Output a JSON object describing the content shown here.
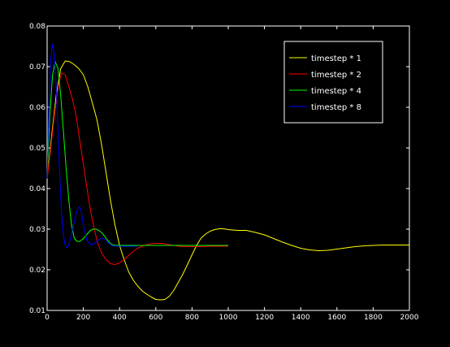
{
  "chart_data": {
    "type": "line",
    "title": "",
    "xlabel": "",
    "ylabel": "",
    "xlim": [
      0,
      2000
    ],
    "ylim": [
      0.01,
      0.08
    ],
    "x_ticks": [
      0,
      200,
      400,
      600,
      800,
      1000,
      1200,
      1400,
      1600,
      1800,
      2000
    ],
    "y_ticks": [
      0.01,
      0.02,
      0.03,
      0.04,
      0.05,
      0.06,
      0.07,
      0.08
    ],
    "grid": false,
    "legend_position": "top-right",
    "background": "#000000",
    "axis_color": "#ffffff",
    "series": [
      {
        "name": "timestep * 1",
        "color": "#ffff00",
        "x": [
          0,
          25,
          50,
          75,
          100,
          125,
          150,
          175,
          200,
          225,
          250,
          275,
          300,
          325,
          350,
          375,
          400,
          425,
          450,
          475,
          500,
          525,
          550,
          575,
          600,
          625,
          650,
          675,
          700,
          725,
          750,
          775,
          800,
          825,
          850,
          875,
          900,
          925,
          950,
          975,
          1000,
          1050,
          1100,
          1150,
          1200,
          1250,
          1300,
          1350,
          1400,
          1450,
          1500,
          1550,
          1600,
          1650,
          1700,
          1750,
          1800,
          1850,
          1900,
          1950,
          2000
        ],
        "y": [
          0.0425,
          0.053,
          0.063,
          0.0695,
          0.0714,
          0.0712,
          0.0705,
          0.0695,
          0.068,
          0.065,
          0.061,
          0.057,
          0.051,
          0.044,
          0.037,
          0.031,
          0.026,
          0.0225,
          0.0195,
          0.0175,
          0.016,
          0.0148,
          0.014,
          0.0133,
          0.0127,
          0.0126,
          0.0127,
          0.0135,
          0.015,
          0.017,
          0.019,
          0.0213,
          0.0237,
          0.026,
          0.0278,
          0.0288,
          0.0295,
          0.0299,
          0.0301,
          0.0301,
          0.0299,
          0.0297,
          0.0297,
          0.0292,
          0.0286,
          0.0277,
          0.0268,
          0.026,
          0.0253,
          0.0249,
          0.0247,
          0.0248,
          0.0251,
          0.0254,
          0.0257,
          0.0259,
          0.026,
          0.0261,
          0.0261,
          0.0261,
          0.0261
        ]
      },
      {
        "name": "timestep * 2",
        "color": "#ff0000",
        "x": [
          0,
          20,
          40,
          60,
          80,
          100,
          120,
          140,
          160,
          180,
          200,
          220,
          240,
          260,
          280,
          300,
          325,
          350,
          375,
          400,
          425,
          450,
          475,
          500,
          525,
          550,
          575,
          600,
          625,
          650,
          675,
          700,
          725,
          750,
          775,
          800,
          850,
          900,
          950,
          1000
        ],
        "y": [
          0.0425,
          0.05,
          0.058,
          0.065,
          0.0685,
          0.068,
          0.065,
          0.062,
          0.058,
          0.052,
          0.046,
          0.04,
          0.0345,
          0.03,
          0.0265,
          0.0242,
          0.0225,
          0.0215,
          0.0213,
          0.0217,
          0.0225,
          0.0235,
          0.0245,
          0.0253,
          0.0258,
          0.0262,
          0.0264,
          0.0265,
          0.0265,
          0.0264,
          0.0262,
          0.026,
          0.0258,
          0.0257,
          0.0257,
          0.0257,
          0.0257,
          0.0258,
          0.0258,
          0.0258
        ]
      },
      {
        "name": "timestep * 4",
        "color": "#00ff00",
        "x": [
          0,
          15,
          30,
          45,
          60,
          75,
          90,
          105,
          120,
          135,
          150,
          165,
          180,
          195,
          210,
          225,
          240,
          255,
          270,
          285,
          300,
          315,
          330,
          345,
          360,
          380,
          400,
          450,
          500,
          600,
          700,
          800,
          900,
          1000
        ],
        "y": [
          0.0425,
          0.058,
          0.068,
          0.0712,
          0.0695,
          0.063,
          0.054,
          0.045,
          0.037,
          0.031,
          0.0278,
          0.027,
          0.027,
          0.0275,
          0.0282,
          0.029,
          0.0297,
          0.03,
          0.03,
          0.0297,
          0.0292,
          0.0284,
          0.0275,
          0.0267,
          0.0262,
          0.026,
          0.026,
          0.026,
          0.026,
          0.026,
          0.026,
          0.026,
          0.026,
          0.026
        ]
      },
      {
        "name": "timestep * 8",
        "color": "#0000ff",
        "x": [
          0,
          10,
          20,
          30,
          40,
          50,
          60,
          70,
          80,
          90,
          100,
          110,
          120,
          130,
          140,
          150,
          160,
          170,
          180,
          190,
          200,
          220,
          240,
          260,
          280,
          300,
          320,
          340,
          360,
          400,
          450,
          500
        ],
        "y": [
          0.0425,
          0.06,
          0.072,
          0.0755,
          0.073,
          0.065,
          0.054,
          0.043,
          0.034,
          0.0285,
          0.026,
          0.0255,
          0.0262,
          0.0278,
          0.0298,
          0.0318,
          0.0338,
          0.0352,
          0.0355,
          0.034,
          0.031,
          0.0272,
          0.0262,
          0.0264,
          0.0272,
          0.0278,
          0.0275,
          0.0265,
          0.0259,
          0.0258,
          0.0258,
          0.0258
        ]
      }
    ]
  }
}
